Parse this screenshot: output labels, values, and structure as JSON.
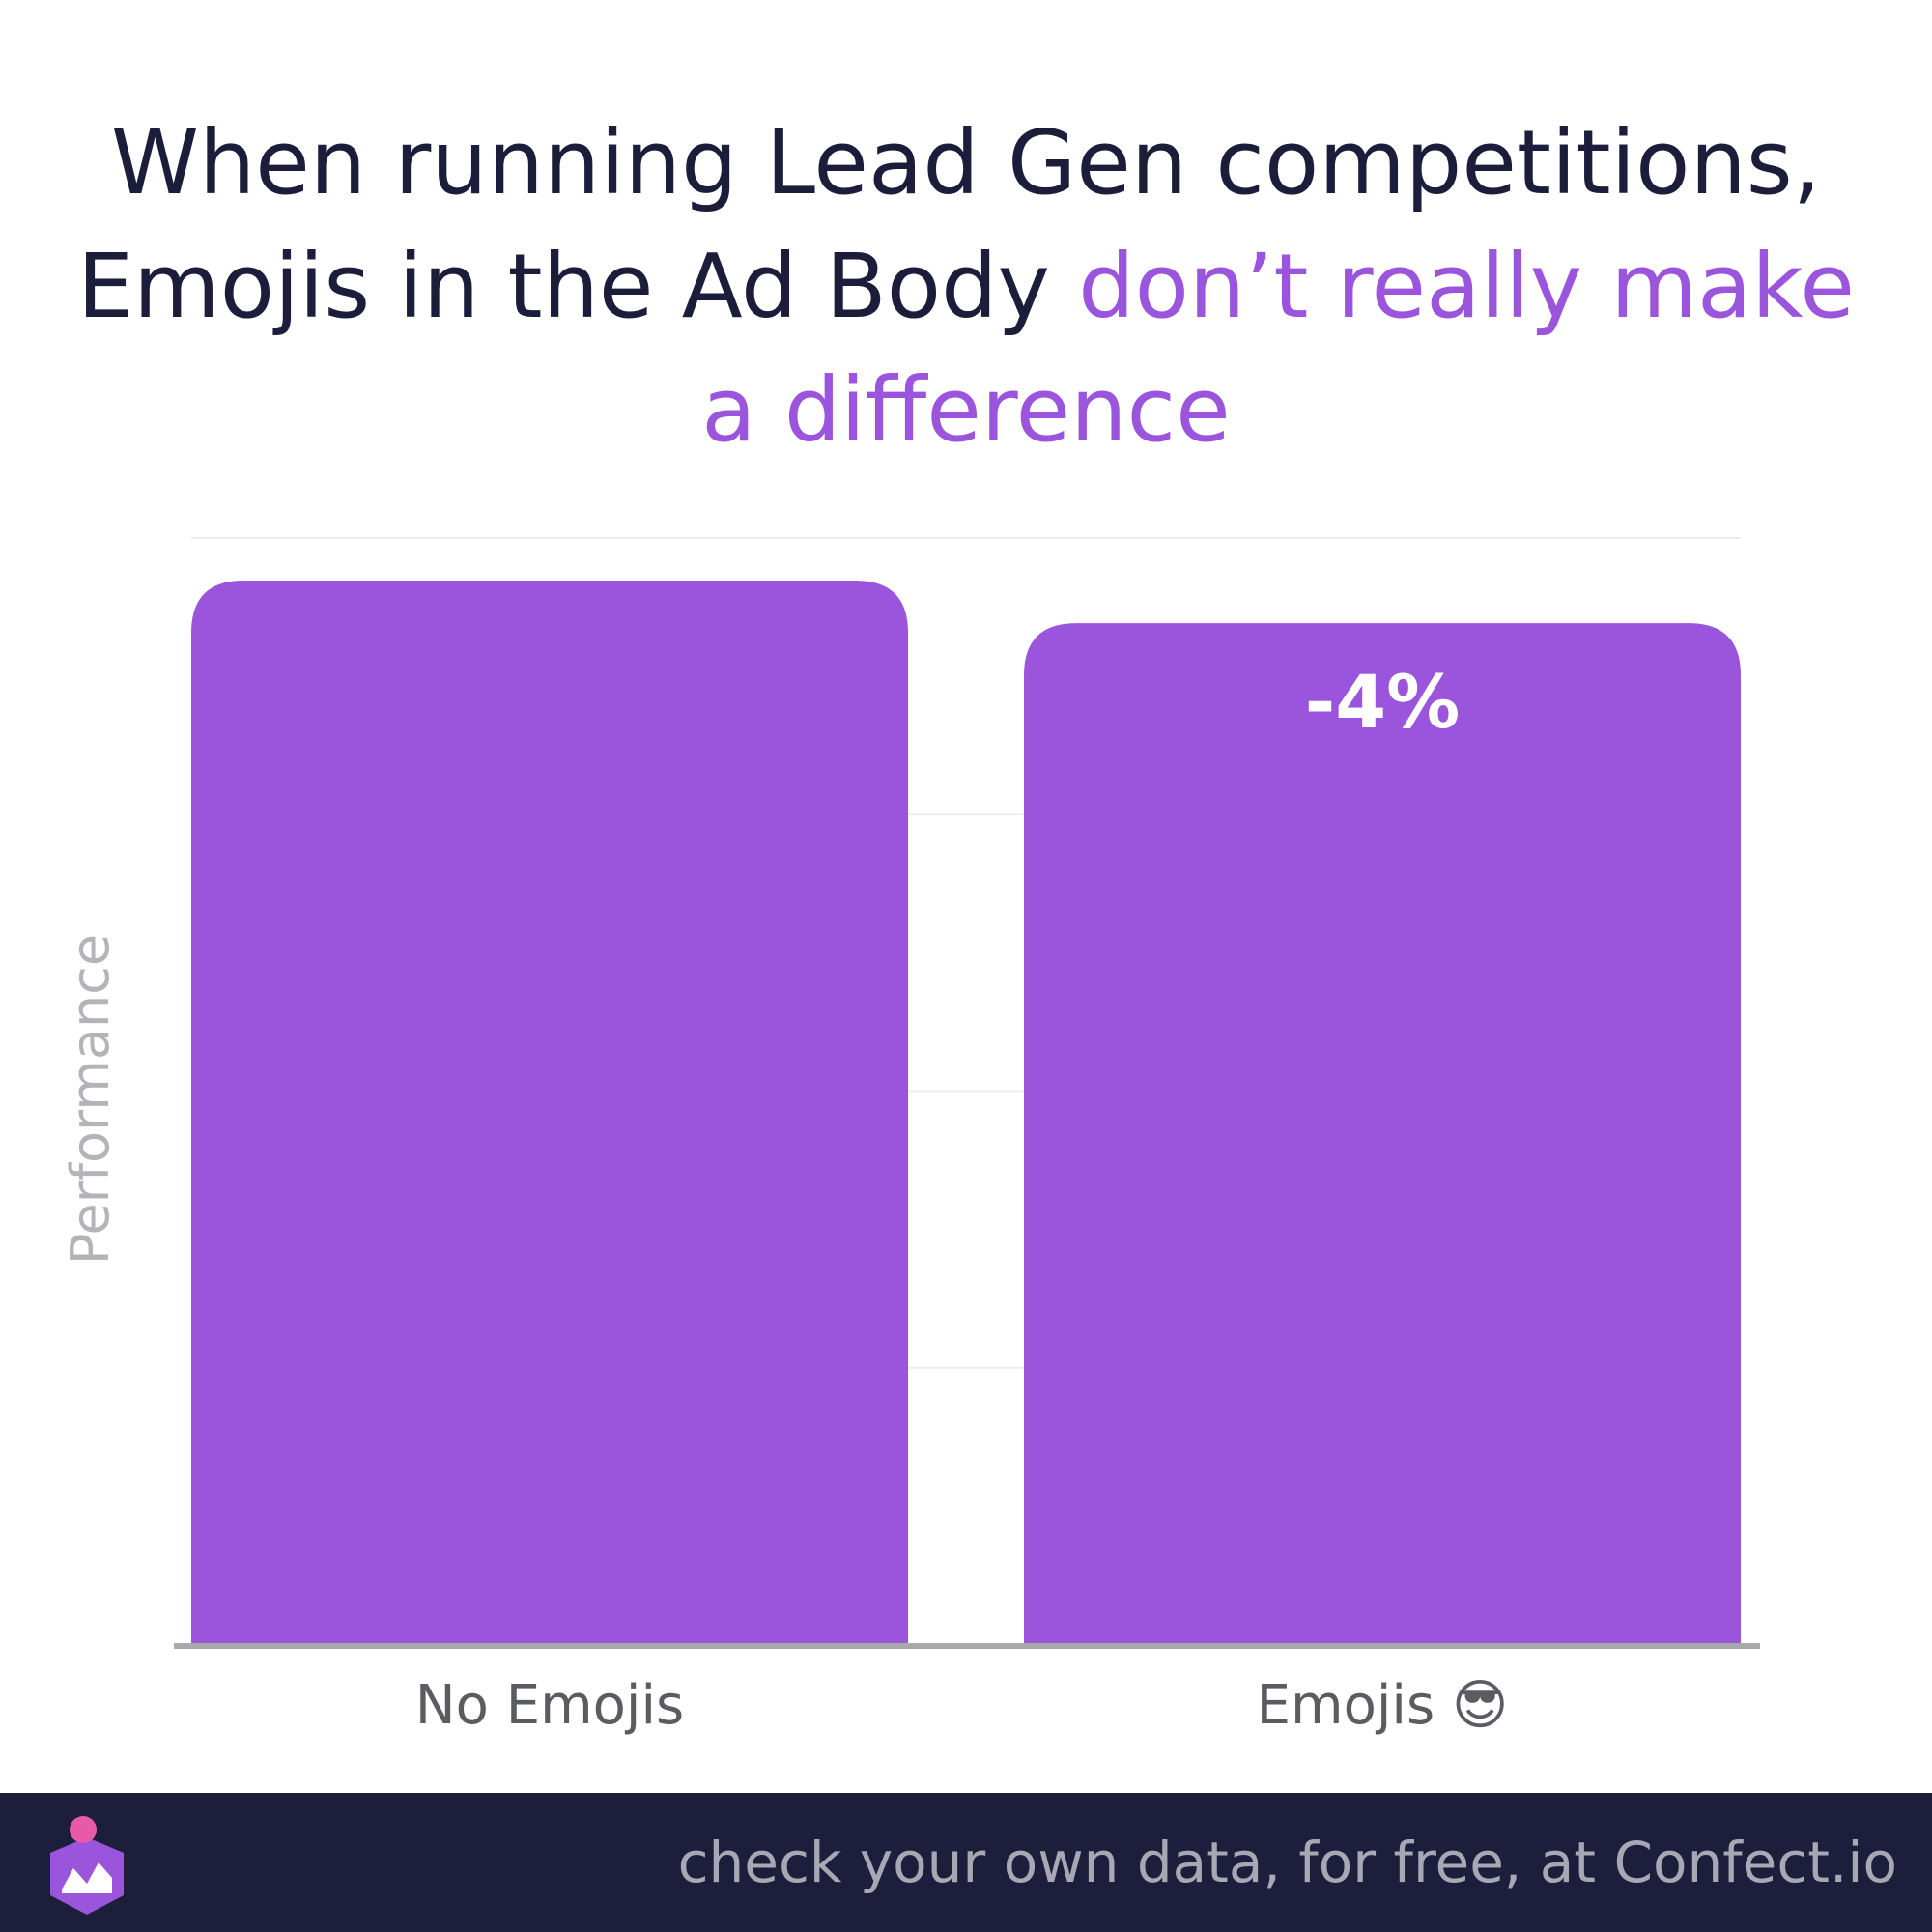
{
  "title": {
    "part1": "When running Lead Gen competitions,",
    "part2": "Emojis in the Ad Body",
    "highlight": "don’t really make a difference"
  },
  "colors": {
    "bar": "#9b55dd",
    "title": "#1c1d3b",
    "accent": "#9b55dd",
    "footer_bg": "#1d1e3c",
    "footer_text": "#a7a8b4"
  },
  "chart_data": {
    "type": "bar",
    "categories": [
      "No Emojis",
      "Emojis 😎"
    ],
    "values": [
      100,
      96
    ],
    "data_labels": [
      "",
      "-4%"
    ],
    "ylabel": "Performance",
    "ylim": [
      0,
      104
    ],
    "grid": true
  },
  "footer": {
    "text": "check your own data, for free, at Confect.io",
    "logo_icon": "confect-logo-icon"
  }
}
